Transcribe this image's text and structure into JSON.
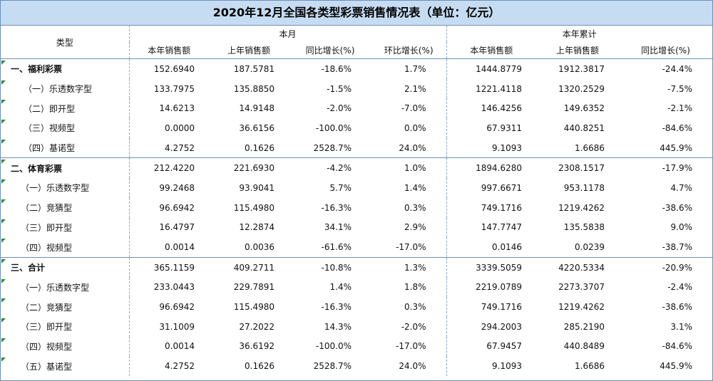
{
  "title": "2020年12月全国各类型彩票销售情况表（单位：亿元）",
  "header": {
    "type_label": "类型",
    "month_group": "本月",
    "ytd_group": "本年累计",
    "cols": [
      "本年销售额",
      "上年销售额",
      "同比增长(%)",
      "环比增长(%)",
      "本年销售额",
      "上年销售额",
      "同比增长(%)"
    ]
  },
  "rows": [
    {
      "name": "一、福利彩票",
      "level": 1,
      "values": [
        "152.6940",
        "187.5781",
        "-18.6%",
        "1.7%",
        "1444.8779",
        "1912.3817",
        "-24.4%"
      ]
    },
    {
      "name": "（一）乐透数字型",
      "level": 2,
      "values": [
        "133.7975",
        "135.8850",
        "-1.5%",
        "2.1%",
        "1221.4118",
        "1320.2529",
        "-7.5%"
      ]
    },
    {
      "name": "（二）即开型",
      "level": 2,
      "values": [
        "14.6213",
        "14.9148",
        "-2.0%",
        "-7.0%",
        "146.4256",
        "149.6352",
        "-2.1%"
      ]
    },
    {
      "name": "（三）视频型",
      "level": 2,
      "values": [
        "0.0000",
        "36.6156",
        "-100.0%",
        "0.0%",
        "67.9311",
        "440.8251",
        "-84.6%"
      ]
    },
    {
      "name": "（四）基诺型",
      "level": 2,
      "values": [
        "4.2752",
        "0.1626",
        "2528.7%",
        "24.0%",
        "9.1093",
        "1.6686",
        "445.9%"
      ]
    },
    {
      "name": "二、体育彩票",
      "level": 1,
      "values": [
        "212.4220",
        "221.6930",
        "-4.2%",
        "1.0%",
        "1894.6280",
        "2308.1517",
        "-17.9%"
      ]
    },
    {
      "name": "（一）乐透数字型",
      "level": 3,
      "values": [
        "99.2468",
        "93.9041",
        "5.7%",
        "1.4%",
        "997.6671",
        "953.1178",
        "4.7%"
      ]
    },
    {
      "name": "（二）竞猜型",
      "level": 3,
      "values": [
        "96.6942",
        "115.4980",
        "-16.3%",
        "0.3%",
        "749.1716",
        "1219.4262",
        "-38.6%"
      ]
    },
    {
      "name": "（三）即开型",
      "level": 3,
      "values": [
        "16.4797",
        "12.2874",
        "34.1%",
        "2.9%",
        "147.7747",
        "135.5838",
        "9.0%"
      ]
    },
    {
      "name": "（四）视频型",
      "level": 3,
      "values": [
        "0.0014",
        "0.0036",
        "-61.6%",
        "-17.0%",
        "0.0146",
        "0.0239",
        "-38.7%"
      ]
    },
    {
      "name": "三、合计",
      "level": 1,
      "values": [
        "365.1159",
        "409.2711",
        "-10.8%",
        "1.3%",
        "3339.5059",
        "4220.5334",
        "-20.9%"
      ]
    },
    {
      "name": "（一）乐透数字型",
      "level": 3,
      "values": [
        "233.0443",
        "229.7891",
        "1.4%",
        "1.8%",
        "2219.0789",
        "2273.3707",
        "-2.4%"
      ]
    },
    {
      "name": "（二）竞猜型",
      "level": 3,
      "values": [
        "96.6942",
        "115.4980",
        "-16.3%",
        "0.3%",
        "749.1716",
        "1219.4262",
        "-38.6%"
      ]
    },
    {
      "name": "（三）即开型",
      "level": 3,
      "values": [
        "31.1009",
        "27.2022",
        "14.3%",
        "-2.0%",
        "294.2003",
        "285.2190",
        "3.1%"
      ]
    },
    {
      "name": "（四）视频型",
      "level": 3,
      "values": [
        "0.0014",
        "36.6192",
        "-100.0%",
        "-17.0%",
        "67.9457",
        "440.8489",
        "-84.6%"
      ]
    },
    {
      "name": "（五）基诺型",
      "level": 3,
      "values": [
        "4.2752",
        "0.1626",
        "2528.7%",
        "24.0%",
        "9.1093",
        "1.6686",
        "445.9%"
      ]
    }
  ],
  "colors": {
    "title_bg": "#c6dcf2",
    "border": "#6f8fb8",
    "marker": "#2e8b2e"
  }
}
